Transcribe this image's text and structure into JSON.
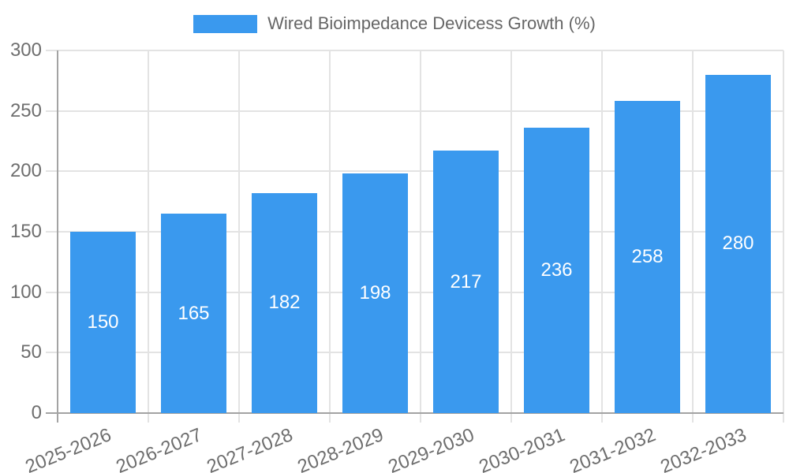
{
  "chart_data": {
    "type": "bar",
    "title": "Wired Bioimpedance Devicess Growth (%)",
    "categories": [
      "2025-2026",
      "2026-2027",
      "2027-2028",
      "2028-2029",
      "2029-2030",
      "2030-2031",
      "2031-2032",
      "2032-2033"
    ],
    "values": [
      150,
      165,
      182,
      198,
      217,
      236,
      258,
      280
    ],
    "xlabel": "",
    "ylabel": "",
    "ylim": [
      0,
      300
    ],
    "yticks": [
      0,
      50,
      100,
      150,
      200,
      250,
      300
    ],
    "grid": true,
    "legend_position": "top",
    "value_labels_inside_bars": true,
    "x_label_rotation_deg": -22,
    "colors": {
      "bar": "#3A99EE",
      "value_label": "#FFFFFF",
      "tick_text": "#6E6E6E",
      "legend_text": "#666666",
      "grid": "#E3E3E3",
      "axis": "#A3A3A3",
      "background": "#FFFFFF"
    }
  }
}
